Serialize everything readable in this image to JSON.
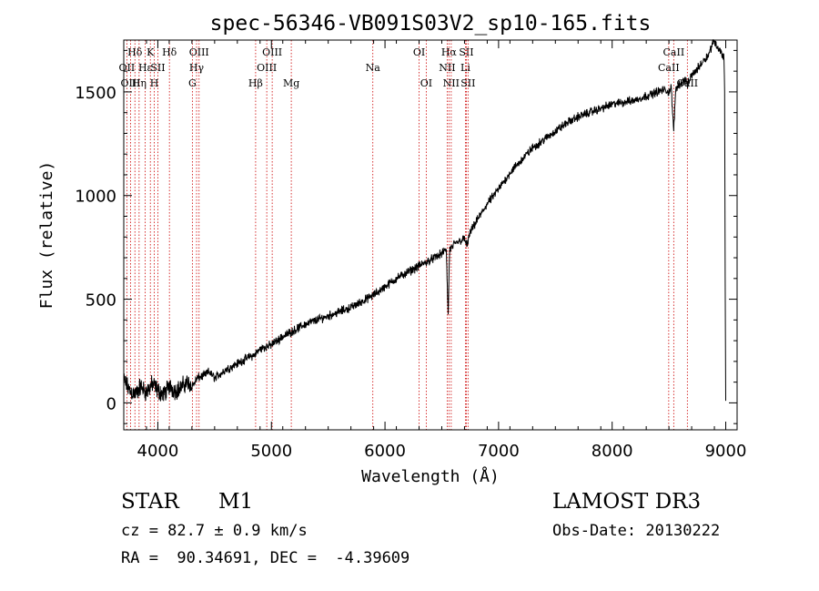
{
  "chart_data": {
    "type": "line",
    "title": "spec-56346-VB091S03V2_sp10-165.fits",
    "xlabel": "Wavelength (Å)",
    "ylabel": "Flux (relative)",
    "xlim": [
      3700,
      9100
    ],
    "ylim": [
      -130,
      1750
    ],
    "xticks": [
      4000,
      5000,
      6000,
      7000,
      8000,
      9000
    ],
    "yticks": [
      0,
      500,
      1000,
      1500
    ],
    "grid": false,
    "line_color": "#000000",
    "marker_color": "#cc0000",
    "spectrum": {
      "name": "flux",
      "x": [
        3700,
        3750,
        3800,
        3850,
        3900,
        3950,
        4000,
        4050,
        4100,
        4150,
        4200,
        4250,
        4300,
        4350,
        4400,
        4450,
        4500,
        4600,
        4700,
        4800,
        4850,
        4900,
        5000,
        5100,
        5200,
        5300,
        5400,
        5500,
        5600,
        5700,
        5800,
        5900,
        6000,
        6100,
        6200,
        6300,
        6400,
        6500,
        6540,
        6556,
        6563,
        6570,
        6590,
        6600,
        6650,
        6700,
        6720,
        6750,
        6800,
        6900,
        7000,
        7100,
        7200,
        7300,
        7400,
        7500,
        7600,
        7700,
        7800,
        7900,
        8000,
        8100,
        8200,
        8300,
        8400,
        8450,
        8498,
        8520,
        8542,
        8560,
        8600,
        8650,
        8662,
        8700,
        8750,
        8800,
        8850,
        8880,
        8900,
        8920,
        8950,
        8970,
        8985,
        8990,
        8995,
        9000
      ],
      "y": [
        110,
        60,
        40,
        80,
        50,
        90,
        60,
        40,
        80,
        60,
        70,
        100,
        80,
        120,
        130,
        150,
        120,
        160,
        190,
        220,
        230,
        260,
        280,
        320,
        350,
        380,
        400,
        420,
        440,
        460,
        490,
        520,
        560,
        600,
        630,
        660,
        690,
        720,
        740,
        420,
        600,
        740,
        750,
        760,
        780,
        790,
        760,
        820,
        870,
        960,
        1030,
        1110,
        1170,
        1230,
        1270,
        1310,
        1350,
        1380,
        1400,
        1420,
        1440,
        1450,
        1460,
        1480,
        1500,
        1510,
        1500,
        1520,
        1310,
        1520,
        1540,
        1560,
        1530,
        1580,
        1610,
        1650,
        1680,
        1730,
        1750,
        1720,
        1700,
        1680,
        1660,
        1500,
        600,
        10
      ]
    },
    "lines": [
      {
        "label": "Hδ",
        "wavelength": 3798,
        "row": 0
      },
      {
        "label": "OII",
        "wavelength": 3727,
        "row": 1
      },
      {
        "label": "OIII",
        "wavelength": 3760,
        "row": 2
      },
      {
        "label": "Hε",
        "wavelength": 3889,
        "row": 1
      },
      {
        "label": "Hη",
        "wavelength": 3835,
        "row": 2
      },
      {
        "label": "K",
        "wavelength": 3934,
        "row": 0
      },
      {
        "label": "SII",
        "wavelength": 4000,
        "row": 1
      },
      {
        "label": "H",
        "wavelength": 3969,
        "row": 2
      },
      {
        "label": "Hδ",
        "wavelength": 4102,
        "row": 0
      },
      {
        "label": "OIII",
        "wavelength": 4363,
        "row": 0
      },
      {
        "label": "Hγ",
        "wavelength": 4341,
        "row": 1
      },
      {
        "label": "G",
        "wavelength": 4304,
        "row": 2
      },
      {
        "label": "Hβ",
        "wavelength": 4861,
        "row": 2
      },
      {
        "label": "OIII",
        "wavelength": 5007,
        "row": 0
      },
      {
        "label": "OIII",
        "wavelength": 4959,
        "row": 1
      },
      {
        "label": "Mg",
        "wavelength": 5175,
        "row": 2
      },
      {
        "label": "Na",
        "wavelength": 5893,
        "row": 1
      },
      {
        "label": "OI",
        "wavelength": 6300,
        "row": 0
      },
      {
        "label": "OI",
        "wavelength": 6363,
        "row": 2
      },
      {
        "label": "Hα",
        "wavelength": 6563,
        "row": 0
      },
      {
        "label": "NII",
        "wavelength": 6548,
        "row": 1
      },
      {
        "label": "NII",
        "wavelength": 6583,
        "row": 2
      },
      {
        "label": "SII",
        "wavelength": 6716,
        "row": 0
      },
      {
        "label": "Li",
        "wavelength": 6708,
        "row": 1
      },
      {
        "label": "SII",
        "wavelength": 6731,
        "row": 2
      },
      {
        "label": "CaII",
        "wavelength": 8542,
        "row": 0
      },
      {
        "label": "CaII",
        "wavelength": 8498,
        "row": 1
      },
      {
        "label": "CaII",
        "wavelength": 8662,
        "row": 2
      }
    ]
  },
  "info": {
    "class_label": "STAR",
    "subclass": "M1",
    "survey": "LAMOST DR3",
    "cz": "cz = 82.7 ± 0.9 km/s",
    "obs_date": "Obs-Date: 20130222",
    "coords": "RA =  90.34691, DEC =  -4.39609"
  }
}
